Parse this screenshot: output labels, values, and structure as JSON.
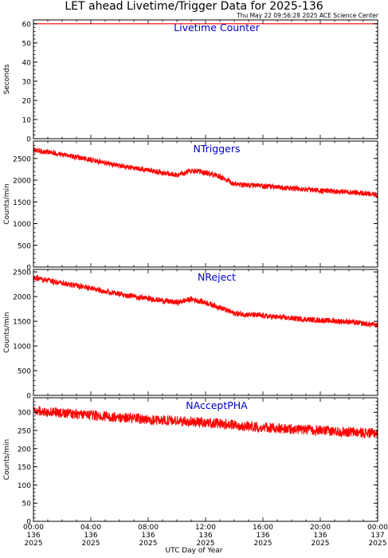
{
  "title": "LET ahead Livetime/Trigger Data for 2025-136",
  "timestamp": "Thu May 22 09:56:28 2025 ACE Science Center",
  "x_axis_label": "UTC Day of Year",
  "colors": {
    "data": "#ff0000",
    "panel_title": "#0000cc",
    "axes": "#000000"
  },
  "x_ticks": [
    {
      "time": "00:00",
      "doy": "136",
      "year": "2025"
    },
    {
      "time": "04:00",
      "doy": "136",
      "year": "2025"
    },
    {
      "time": "08:00",
      "doy": "136",
      "year": "2025"
    },
    {
      "time": "12:00",
      "doy": "136",
      "year": "2025"
    },
    {
      "time": "16:00",
      "doy": "136",
      "year": "2025"
    },
    {
      "time": "20:00",
      "doy": "136",
      "year": "2025"
    },
    {
      "time": "00:00",
      "doy": "137",
      "year": "2025"
    }
  ],
  "chart_data": [
    {
      "type": "line",
      "title": "Livetime Counter",
      "ylabel": "Seconds",
      "ylim": [
        0,
        62
      ],
      "yticks": [
        0,
        10,
        20,
        30,
        40,
        50,
        60
      ],
      "xlim_hours": [
        0,
        24
      ],
      "series": [
        {
          "x": [
            0,
            4,
            8,
            12,
            16,
            20,
            24
          ],
          "values": [
            60,
            60,
            60,
            60,
            60,
            60,
            60
          ],
          "noise": 0
        }
      ]
    },
    {
      "type": "line",
      "title": "NTriggers",
      "ylabel": "Counts/min",
      "ylim": [
        0,
        2900
      ],
      "yticks": [
        0,
        500,
        1000,
        1500,
        2000,
        2500
      ],
      "xlim_hours": [
        0,
        24
      ],
      "series": [
        {
          "x": [
            0,
            2,
            4,
            6,
            8,
            10,
            11,
            12,
            13,
            14,
            16,
            18,
            20,
            22,
            24
          ],
          "values": [
            2700,
            2590,
            2470,
            2330,
            2230,
            2110,
            2220,
            2170,
            2080,
            1910,
            1860,
            1810,
            1760,
            1730,
            1660
          ],
          "noise": 60
        }
      ]
    },
    {
      "type": "line",
      "title": "NReject",
      "ylabel": "Counts/min",
      "ylim": [
        0,
        2550
      ],
      "yticks": [
        0,
        500,
        1000,
        1500,
        2000,
        2500
      ],
      "xlim_hours": [
        0,
        24
      ],
      "series": [
        {
          "x": [
            0,
            2,
            4,
            6,
            8,
            10,
            11,
            12,
            13,
            14,
            16,
            18,
            20,
            22,
            24
          ],
          "values": [
            2380,
            2270,
            2170,
            2050,
            1960,
            1880,
            1950,
            1880,
            1780,
            1660,
            1610,
            1560,
            1520,
            1490,
            1420
          ],
          "noise": 55
        }
      ]
    },
    {
      "type": "line",
      "title": "NAcceptPHA",
      "ylabel": "Counts/min",
      "ylim": [
        0,
        340
      ],
      "yticks": [
        0,
        50,
        100,
        150,
        200,
        250,
        300
      ],
      "xlim_hours": [
        0,
        24
      ],
      "series": [
        {
          "x": [
            0,
            4,
            8,
            12,
            16,
            20,
            24
          ],
          "values": [
            305,
            292,
            280,
            272,
            258,
            250,
            242
          ],
          "noise": 14
        }
      ]
    }
  ]
}
